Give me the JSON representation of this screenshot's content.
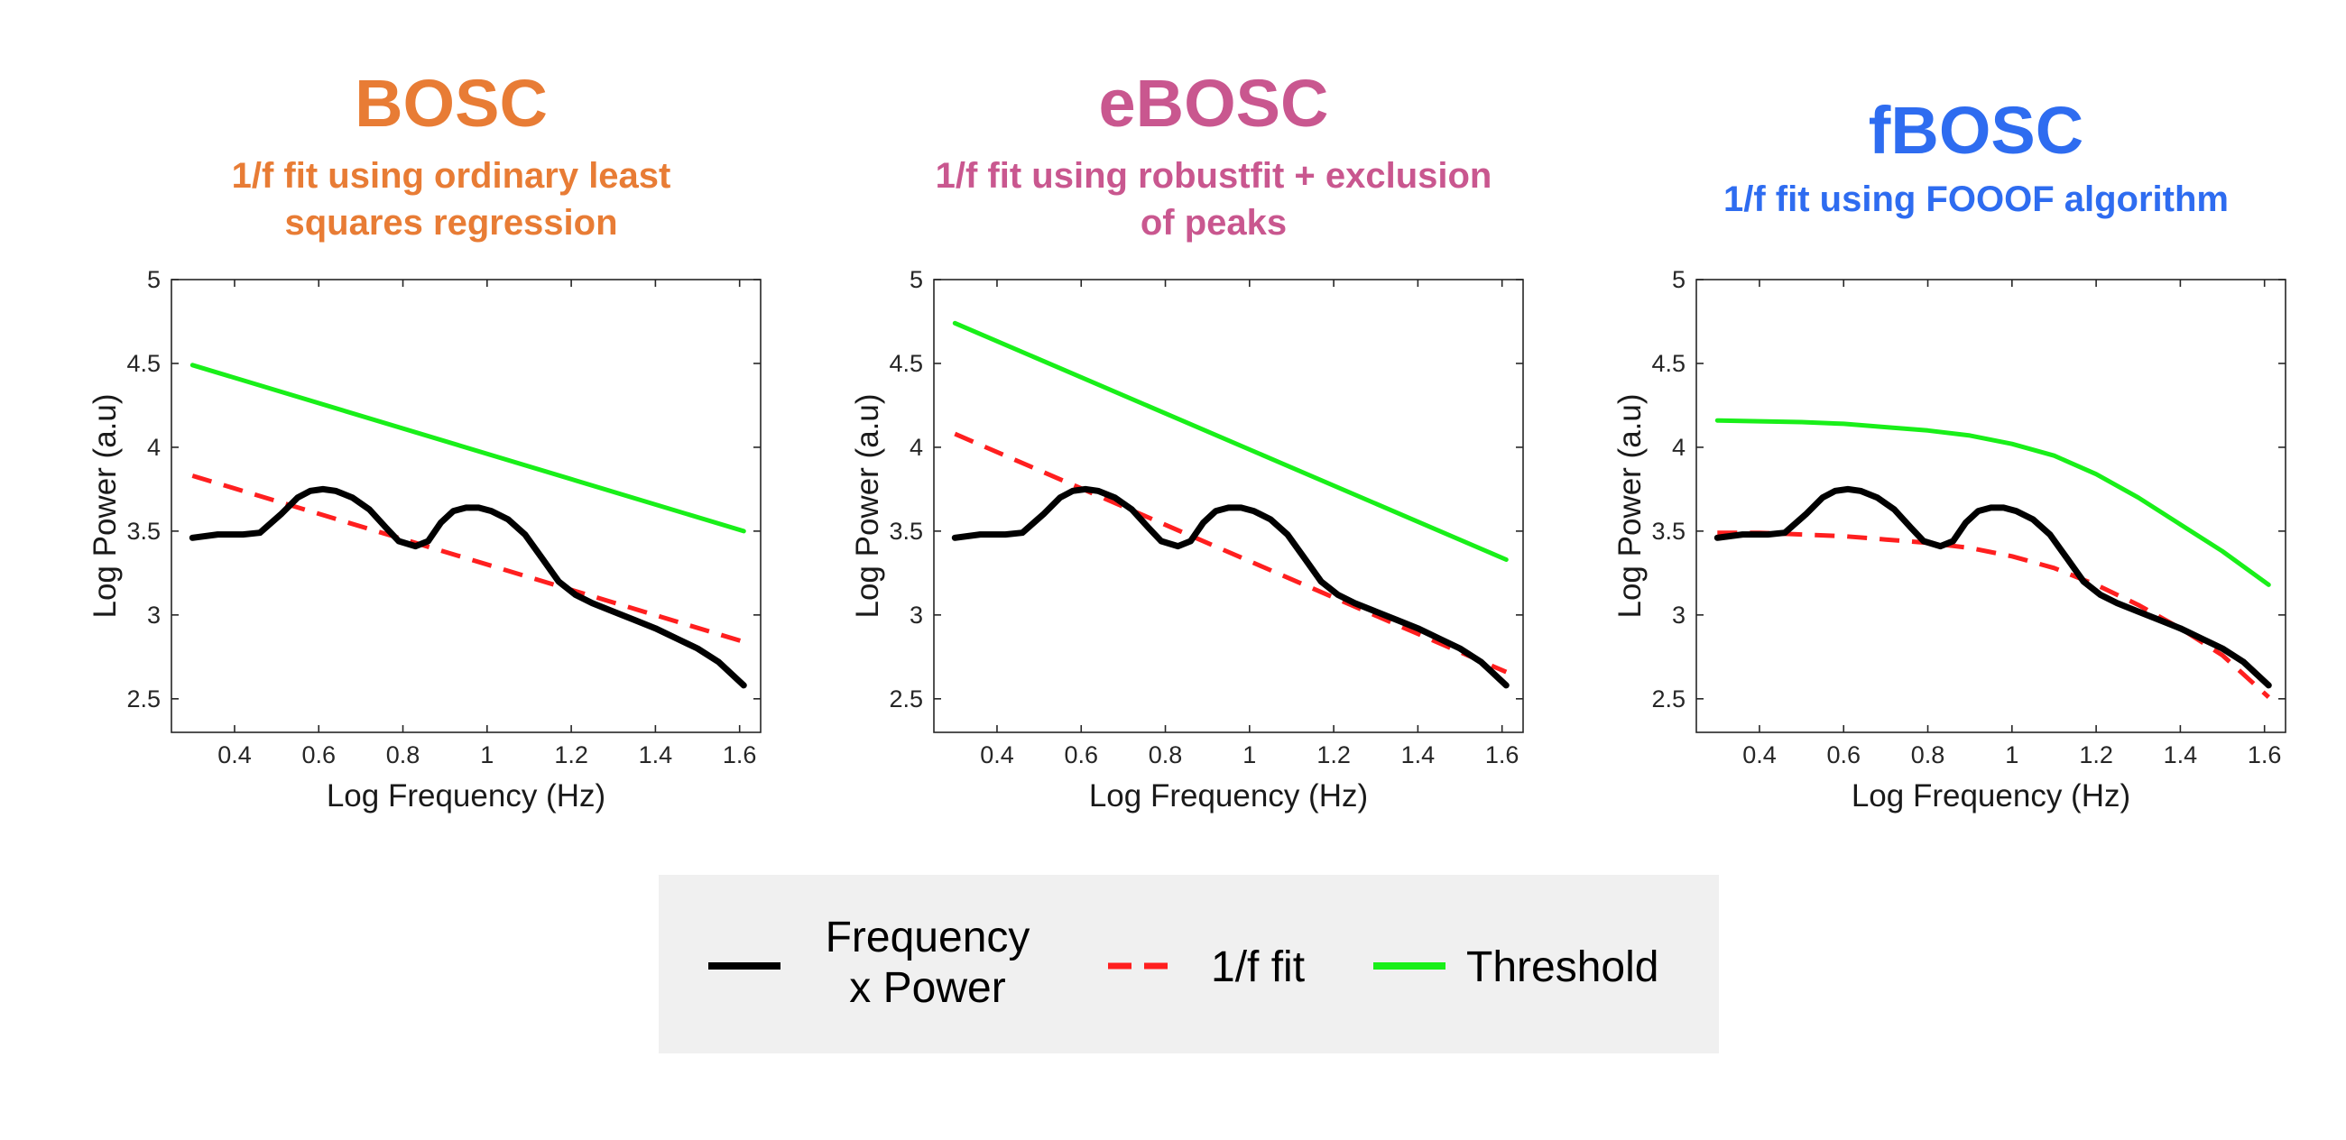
{
  "colors": {
    "bosc": "#e87c35",
    "ebosc": "#c9578f",
    "fbosc": "#2e6cf0",
    "spectrum": "#000000",
    "fit": "#ff1f1f",
    "threshold": "#19ef19",
    "legend_bg": "#f0f0f0"
  },
  "chart_data": [
    {
      "type": "line",
      "title": "BOSC",
      "subtitle": [
        "1/f fit using ordinary least",
        "squares regression"
      ],
      "xlabel": "Log Frequency (Hz)",
      "ylabel": "Log Power (a.u)",
      "xlim": [
        0.25,
        1.65
      ],
      "ylim": [
        2.3,
        5
      ],
      "xticks": [
        0.4,
        0.6,
        0.8,
        1,
        1.2,
        1.4,
        1.6
      ],
      "xtick_labels": [
        "0.4",
        "0.6",
        "0.8",
        "1",
        "1.2",
        "1.4",
        "1.6"
      ],
      "yticks": [
        2.5,
        3,
        3.5,
        4,
        4.5,
        5
      ],
      "ytick_labels": [
        "2.5",
        "3",
        "3.5",
        "4",
        "4.5",
        "5"
      ],
      "grid": false,
      "series": [
        {
          "name": "Frequency x Power",
          "x": [
            0.3,
            0.36,
            0.42,
            0.46,
            0.51,
            0.55,
            0.58,
            0.61,
            0.64,
            0.68,
            0.72,
            0.76,
            0.79,
            0.83,
            0.86,
            0.89,
            0.92,
            0.95,
            0.98,
            1.01,
            1.05,
            1.09,
            1.13,
            1.17,
            1.21,
            1.25,
            1.3,
            1.35,
            1.4,
            1.45,
            1.5,
            1.55,
            1.61
          ],
          "y": [
            3.46,
            3.48,
            3.48,
            3.49,
            3.6,
            3.7,
            3.74,
            3.75,
            3.74,
            3.7,
            3.63,
            3.52,
            3.44,
            3.41,
            3.44,
            3.55,
            3.62,
            3.64,
            3.64,
            3.62,
            3.57,
            3.48,
            3.34,
            3.2,
            3.12,
            3.07,
            3.02,
            2.97,
            2.92,
            2.86,
            2.8,
            2.72,
            2.58
          ]
        },
        {
          "name": "1/f fit",
          "x": [
            0.3,
            1.61
          ],
          "y": [
            3.83,
            2.84
          ]
        },
        {
          "name": "Threshold",
          "x": [
            0.3,
            1.61
          ],
          "y": [
            4.49,
            3.5
          ]
        }
      ]
    },
    {
      "type": "line",
      "title": "eBOSC",
      "subtitle": [
        "1/f fit using robustfit + exclusion",
        "of peaks"
      ],
      "xlabel": "Log Frequency (Hz)",
      "ylabel": "Log Power (a.u)",
      "xlim": [
        0.25,
        1.65
      ],
      "ylim": [
        2.3,
        5
      ],
      "xticks": [
        0.4,
        0.6,
        0.8,
        1,
        1.2,
        1.4,
        1.6
      ],
      "xtick_labels": [
        "0.4",
        "0.6",
        "0.8",
        "1",
        "1.2",
        "1.4",
        "1.6"
      ],
      "yticks": [
        2.5,
        3,
        3.5,
        4,
        4.5,
        5
      ],
      "ytick_labels": [
        "2.5",
        "3",
        "3.5",
        "4",
        "4.5",
        "5"
      ],
      "grid": false,
      "series": [
        {
          "name": "Frequency x Power",
          "x": [
            0.3,
            0.36,
            0.42,
            0.46,
            0.51,
            0.55,
            0.58,
            0.61,
            0.64,
            0.68,
            0.72,
            0.76,
            0.79,
            0.83,
            0.86,
            0.89,
            0.92,
            0.95,
            0.98,
            1.01,
            1.05,
            1.09,
            1.13,
            1.17,
            1.21,
            1.25,
            1.3,
            1.35,
            1.4,
            1.45,
            1.5,
            1.55,
            1.61
          ],
          "y": [
            3.46,
            3.48,
            3.48,
            3.49,
            3.6,
            3.7,
            3.74,
            3.75,
            3.74,
            3.7,
            3.63,
            3.52,
            3.44,
            3.41,
            3.44,
            3.55,
            3.62,
            3.64,
            3.64,
            3.62,
            3.57,
            3.48,
            3.34,
            3.2,
            3.12,
            3.07,
            3.02,
            2.97,
            2.92,
            2.86,
            2.8,
            2.72,
            2.58
          ]
        },
        {
          "name": "1/f fit",
          "x": [
            0.3,
            1.61
          ],
          "y": [
            4.08,
            2.66
          ]
        },
        {
          "name": "Threshold",
          "x": [
            0.3,
            1.61
          ],
          "y": [
            4.74,
            3.33
          ]
        }
      ]
    },
    {
      "type": "line",
      "title": "fBOSC",
      "subtitle": [
        "1/f fit using FOOOF algorithm"
      ],
      "xlabel": "Log Frequency (Hz)",
      "ylabel": "Log Power (a.u)",
      "xlim": [
        0.25,
        1.65
      ],
      "ylim": [
        2.3,
        5
      ],
      "xticks": [
        0.4,
        0.6,
        0.8,
        1,
        1.2,
        1.4,
        1.6
      ],
      "xtick_labels": [
        "0.4",
        "0.6",
        "0.8",
        "1",
        "1.2",
        "1.4",
        "1.6"
      ],
      "yticks": [
        2.5,
        3,
        3.5,
        4,
        4.5,
        5
      ],
      "ytick_labels": [
        "2.5",
        "3",
        "3.5",
        "4",
        "4.5",
        "5"
      ],
      "grid": false,
      "series": [
        {
          "name": "Frequency x Power",
          "x": [
            0.3,
            0.36,
            0.42,
            0.46,
            0.51,
            0.55,
            0.58,
            0.61,
            0.64,
            0.68,
            0.72,
            0.76,
            0.79,
            0.83,
            0.86,
            0.89,
            0.92,
            0.95,
            0.98,
            1.01,
            1.05,
            1.09,
            1.13,
            1.17,
            1.21,
            1.25,
            1.3,
            1.35,
            1.4,
            1.45,
            1.5,
            1.55,
            1.61
          ],
          "y": [
            3.46,
            3.48,
            3.48,
            3.49,
            3.6,
            3.7,
            3.74,
            3.75,
            3.74,
            3.7,
            3.63,
            3.52,
            3.44,
            3.41,
            3.44,
            3.55,
            3.62,
            3.64,
            3.64,
            3.62,
            3.57,
            3.48,
            3.34,
            3.2,
            3.12,
            3.07,
            3.02,
            2.97,
            2.92,
            2.86,
            2.8,
            2.72,
            2.58
          ]
        },
        {
          "name": "1/f fit",
          "x": [
            0.3,
            0.4,
            0.5,
            0.6,
            0.7,
            0.8,
            0.9,
            1.0,
            1.1,
            1.2,
            1.3,
            1.4,
            1.5,
            1.61
          ],
          "y": [
            3.49,
            3.49,
            3.48,
            3.47,
            3.45,
            3.43,
            3.4,
            3.35,
            3.28,
            3.18,
            3.06,
            2.92,
            2.76,
            2.51
          ]
        },
        {
          "name": "Threshold",
          "x": [
            0.3,
            0.4,
            0.5,
            0.6,
            0.7,
            0.8,
            0.9,
            1.0,
            1.1,
            1.2,
            1.3,
            1.4,
            1.5,
            1.61
          ],
          "y": [
            4.16,
            4.155,
            4.15,
            4.14,
            4.12,
            4.1,
            4.07,
            4.02,
            3.95,
            3.84,
            3.7,
            3.54,
            3.38,
            3.18
          ]
        }
      ]
    }
  ],
  "legend": {
    "items": [
      {
        "label": [
          "Frequency",
          "x Power"
        ],
        "color": "#000000",
        "dashed": false
      },
      {
        "label": [
          "1/f fit"
        ],
        "color": "#ff1f1f",
        "dashed": true
      },
      {
        "label": [
          "Threshold"
        ],
        "color": "#19ef19",
        "dashed": false
      }
    ]
  }
}
